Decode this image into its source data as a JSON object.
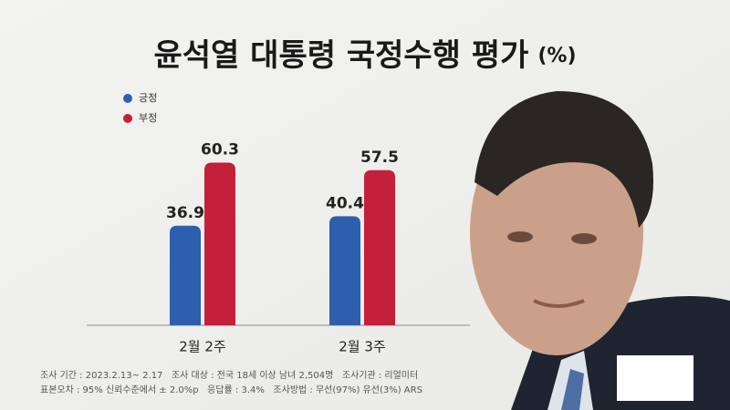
{
  "chart_data": {
    "type": "bar",
    "title": "윤석열 대통령 국정수행 평가",
    "unit_label": "(%)",
    "categories": [
      "2월 2주",
      "2월 3주"
    ],
    "series": [
      {
        "name": "긍정",
        "color": "#2d5fae",
        "values": [
          36.9,
          40.4
        ]
      },
      {
        "name": "부정",
        "color": "#c41f3b",
        "values": [
          60.3,
          57.5
        ]
      }
    ],
    "notes": [
      "조사 기간 : 2023.2.13~ 2.17   조사 대상 : 전국 18세 이상 남녀 2,504명   조사기관 : 리얼미터",
      "표본오차 : 95% 신뢰수준에서 ± 2.0%p   응답률 : 3.4%   조사방법 : 무선(97%) 유선(3%) ARS"
    ]
  }
}
